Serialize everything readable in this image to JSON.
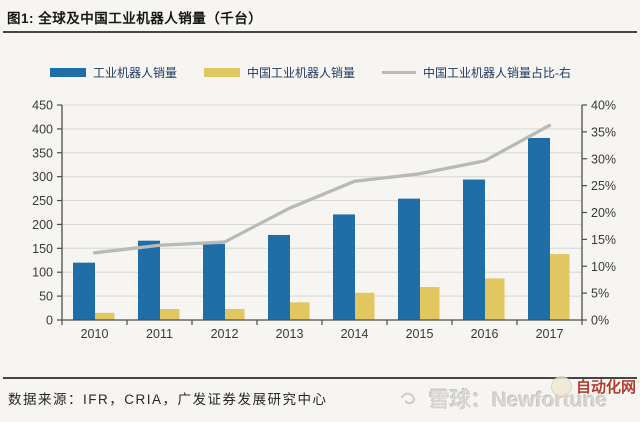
{
  "title": "图1:  全球及中国工业机器人销量（千台）",
  "legend": [
    {
      "label": "工业机器人销量",
      "type": "bar",
      "color": "#1F6EA7"
    },
    {
      "label": "中国工业机器人销量",
      "type": "bar",
      "color": "#E2C65F"
    },
    {
      "label": "中国工业机器人销量占比-右",
      "type": "line",
      "color": "#B9B9B9"
    }
  ],
  "chart_data": {
    "type": "bar+line combo",
    "categories": [
      "2010",
      "2011",
      "2012",
      "2013",
      "2014",
      "2015",
      "2016",
      "2017"
    ],
    "series": [
      {
        "name": "工业机器人销量",
        "type": "bar",
        "axis": "left",
        "color": "#1F6EA7",
        "values": [
          120,
          166,
          159,
          178,
          221,
          254,
          294,
          381
        ]
      },
      {
        "name": "中国工业机器人销量",
        "type": "bar",
        "axis": "left",
        "color": "#E2C65F",
        "values": [
          15,
          23,
          23,
          37,
          57,
          69,
          87,
          138
        ]
      },
      {
        "name": "中国工业机器人销量占比-右",
        "type": "line",
        "axis": "right",
        "color": "#B9B9B9",
        "values_pct": [
          12.5,
          13.9,
          14.5,
          20.8,
          25.8,
          27.2,
          29.6,
          36.2
        ]
      }
    ],
    "left_axis": {
      "min": 0,
      "max": 450,
      "step": 50,
      "ticks": [
        "0",
        "50",
        "100",
        "150",
        "200",
        "250",
        "300",
        "350",
        "400",
        "450"
      ]
    },
    "right_axis": {
      "min": 0,
      "max": 40,
      "step": 5,
      "suffix": "%",
      "ticks": [
        "0%",
        "5%",
        "10%",
        "15%",
        "20%",
        "25%",
        "30%",
        "35%",
        "40%"
      ]
    },
    "grid": true,
    "legend_position": "top"
  },
  "footer": {
    "source": "数据来源：IFR，CRIA，广发证券发展研究中心",
    "watermark_text": "雪球：Newfortune",
    "badge_text": "自动化网"
  },
  "icons": {
    "watermark_logo": "xueqiu-snowball-icon",
    "badge_logo": "automation-site-icon"
  },
  "colors": {
    "background": "#f6f5f1",
    "global_bar": "#1F6EA7",
    "china_bar": "#E2C65F",
    "ratio_line": "#B9B9B9",
    "legend_text": "#1f3864",
    "axis_text": "#3a3a3a",
    "badge_red": "#b23c2e"
  }
}
